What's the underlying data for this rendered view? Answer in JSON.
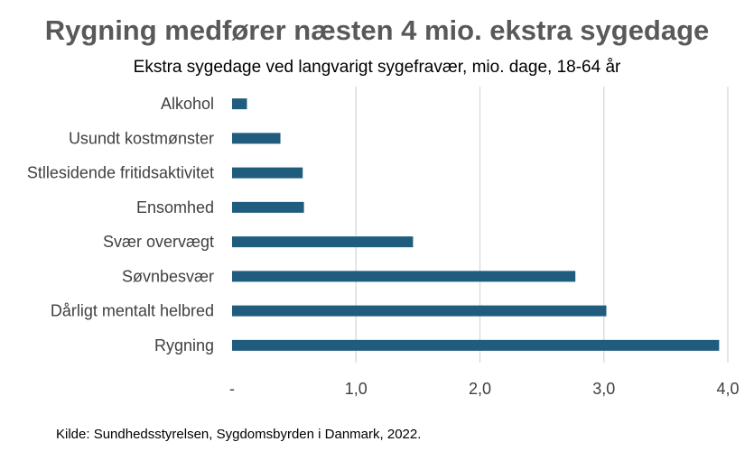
{
  "chart_data": {
    "type": "bar",
    "orientation": "horizontal",
    "title": "Rygning medfører næsten 4 mio. ekstra sygedage",
    "subtitle": "Ekstra sygedage ved langvarigt sygefravær, mio. dage, 18-64 år",
    "categories": [
      "Alkohol",
      "Usundt kostmønster",
      "Stllesidende fritidsaktivitet",
      "Ensomhed",
      "Svær overvægt",
      "Søvnbesvær",
      "Dårligt mentalt helbred",
      "Rygning"
    ],
    "values": [
      0.12,
      0.39,
      0.57,
      0.58,
      1.46,
      2.77,
      3.02,
      3.93
    ],
    "xlim": [
      0,
      4
    ],
    "xticks": [
      0,
      1,
      2,
      3,
      4
    ],
    "xtick_labels": [
      "-",
      "1,0",
      "2,0",
      "3,0",
      "4,0"
    ],
    "grid": true,
    "bar_color": "#1f5c7d",
    "source": "Kilde: Sundhedsstyrelsen, Sygdomsbyrden i Danmark, 2022."
  }
}
